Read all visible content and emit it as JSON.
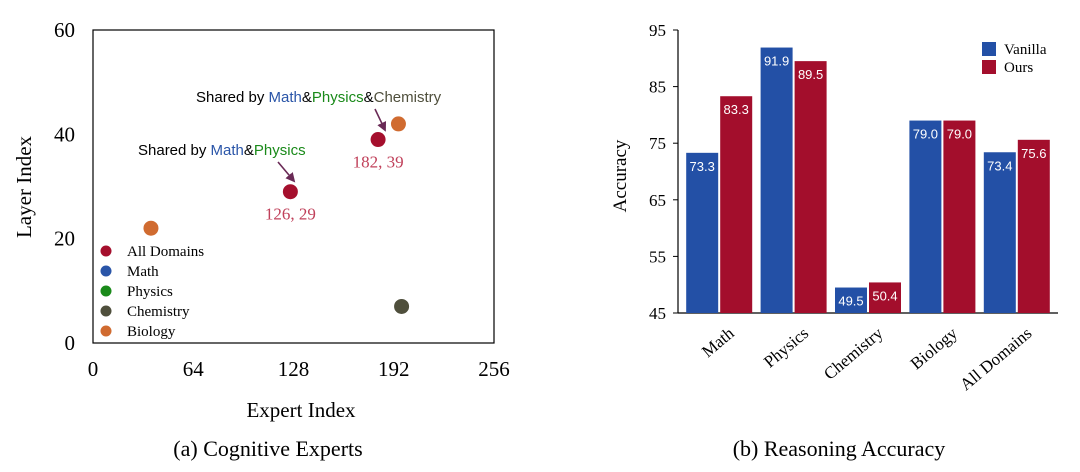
{
  "chart_data": [
    {
      "type": "scatter",
      "caption": "(a) Cognitive Experts",
      "xlabel": "Expert Index",
      "ylabel": "Layer Index",
      "xlim": [
        0,
        256
      ],
      "ylim": [
        0,
        60
      ],
      "xticks": [
        "0",
        "64",
        "128",
        "192",
        "256"
      ],
      "yticks": [
        "0",
        "20",
        "40",
        "60"
      ],
      "grid": false,
      "legend_position": "lower-left",
      "legend": [
        {
          "label": "All Domains",
          "color": "#a50f2d"
        },
        {
          "label": "Math",
          "color": "#2a55a8"
        },
        {
          "label": "Physics",
          "color": "#1a8a1a"
        },
        {
          "label": "Chemistry",
          "color": "#4f4f3c"
        },
        {
          "label": "Biology",
          "color": "#d06b30"
        }
      ],
      "points": [
        {
          "series": "All Domains",
          "x": 126,
          "y": 29,
          "label": "126, 29"
        },
        {
          "series": "All Domains",
          "x": 182,
          "y": 39,
          "label": "182, 39"
        },
        {
          "series": "Biology",
          "x": 37,
          "y": 22
        },
        {
          "series": "Biology",
          "x": 195,
          "y": 42
        },
        {
          "series": "Chemistry",
          "x": 197,
          "y": 7
        }
      ],
      "annotations": [
        {
          "target": "126, 29",
          "prefix": "Shared by ",
          "parts": [
            {
              "text": "Math",
              "color": "#2a55a8"
            },
            {
              "text": "&",
              "color": "#000000"
            },
            {
              "text": "Physics",
              "color": "#1a8a1a"
            }
          ]
        },
        {
          "target": "182, 39",
          "prefix": "Shared by ",
          "parts": [
            {
              "text": "Math",
              "color": "#2a55a8"
            },
            {
              "text": "&",
              "color": "#000000"
            },
            {
              "text": "Physics",
              "color": "#1a8a1a"
            },
            {
              "text": "&",
              "color": "#000000"
            },
            {
              "text": "Chemistry",
              "color": "#4f4f3c"
            }
          ]
        }
      ]
    },
    {
      "type": "bar",
      "caption": "(b) Reasoning Accuracy",
      "xlabel": "",
      "ylabel": "Accuracy",
      "ylim": [
        45,
        95
      ],
      "yticks": [
        "45",
        "55",
        "65",
        "75",
        "85",
        "95"
      ],
      "grid": false,
      "legend_position": "top-right",
      "categories": [
        "Math",
        "Physics",
        "Chemistry",
        "Biology",
        "All Domains"
      ],
      "series": [
        {
          "name": "Vanilla",
          "color": "#2350a6",
          "values": [
            73.3,
            91.9,
            49.5,
            79.0,
            73.4
          ]
        },
        {
          "name": "Ours",
          "color": "#a30e2c",
          "values": [
            83.3,
            89.5,
            50.4,
            79.0,
            75.6
          ]
        }
      ]
    }
  ]
}
